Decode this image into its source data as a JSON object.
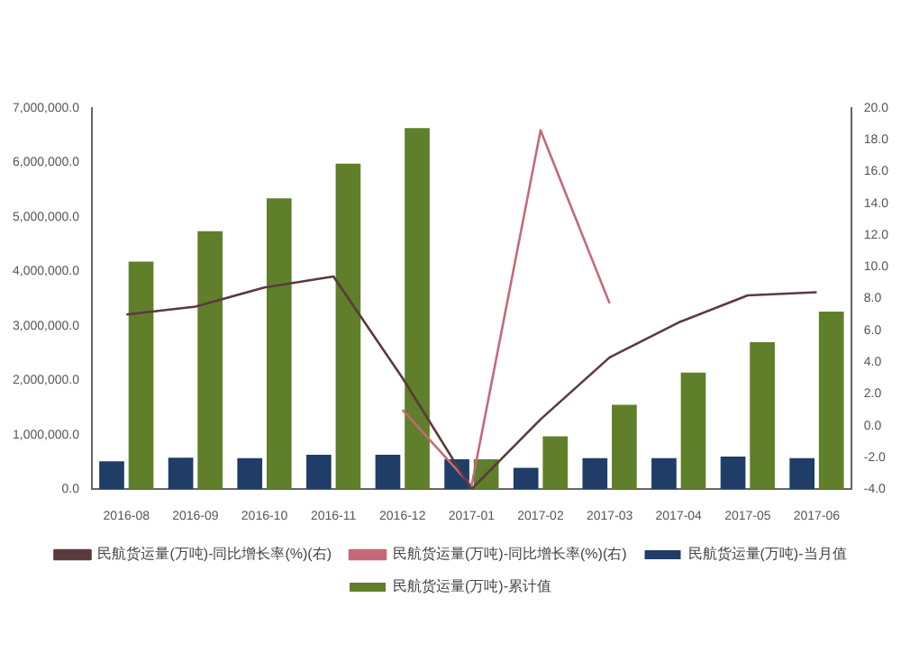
{
  "chart_data": {
    "type": "bar",
    "categories": [
      "2016-08",
      "2016-09",
      "2016-10",
      "2016-11",
      "2016-12",
      "2017-01",
      "2017-02",
      "2017-03",
      "2017-04",
      "2017-05",
      "2017-06"
    ],
    "series": [
      {
        "name": "民航货运量(万吨)-当月值",
        "color": "#1f3d66",
        "values": [
          510000,
          580000,
          570000,
          630000,
          630000,
          550000,
          390000,
          570000,
          570000,
          600000,
          570000
        ]
      },
      {
        "name": "民航货运量(万吨)-累计值",
        "color": "#5f7f2a",
        "values": [
          4180000,
          4740000,
          5340000,
          5980000,
          6630000,
          550000,
          970000,
          1550000,
          2140000,
          2700000,
          3260000
        ]
      },
      {
        "name": "民航货运量(万吨)-同比增长率(%)(右)",
        "type": "line",
        "axis": "y2",
        "color": "#5b3a3e",
        "values": [
          7.0,
          7.5,
          8.7,
          9.4,
          3.0,
          -4.0,
          0.4,
          4.3,
          6.5,
          8.2,
          8.4
        ]
      },
      {
        "name": "民航货运量(万吨)-同比增长率(%)(右)",
        "type": "line",
        "axis": "y2",
        "color": "#c46a78",
        "values": [
          null,
          null,
          null,
          null,
          1.0,
          -3.8,
          18.6,
          7.7,
          null,
          null,
          null
        ]
      }
    ],
    "ylim": [
      0,
      7000000
    ],
    "yticks": [
      {
        "value": 0,
        "label": "0.0"
      },
      {
        "value": 1000000,
        "label": "1,000,000.0"
      },
      {
        "value": 2000000,
        "label": "2,000,000.0"
      },
      {
        "value": 3000000,
        "label": "3,000,000.0"
      },
      {
        "value": 4000000,
        "label": "4,000,000.0"
      },
      {
        "value": 5000000,
        "label": "5,000,000.0"
      },
      {
        "value": 6000000,
        "label": "6,000,000.0"
      },
      {
        "value": 7000000,
        "label": "7,000,000.0"
      }
    ],
    "y2lim": [
      -4,
      20
    ],
    "y2ticks": [
      {
        "value": -4,
        "label": "-4.0"
      },
      {
        "value": -2,
        "label": "-2.0"
      },
      {
        "value": 0,
        "label": "0.0"
      },
      {
        "value": 2,
        "label": "2.0"
      },
      {
        "value": 4,
        "label": "4.0"
      },
      {
        "value": 6,
        "label": "6.0"
      },
      {
        "value": 8,
        "label": "8.0"
      },
      {
        "value": 10,
        "label": "10.0"
      },
      {
        "value": 12,
        "label": "12.0"
      },
      {
        "value": 14,
        "label": "14.0"
      },
      {
        "value": 16,
        "label": "16.0"
      },
      {
        "value": 18,
        "label": "18.0"
      },
      {
        "value": 20,
        "label": "20.0"
      }
    ],
    "grid": false,
    "legend": "bottom",
    "marker": "none"
  }
}
